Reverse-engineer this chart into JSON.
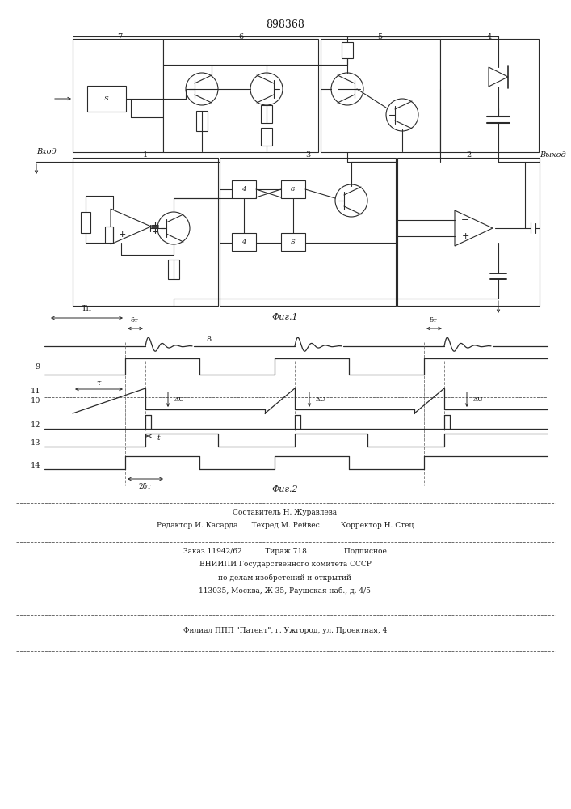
{
  "title": "898368",
  "fig1_label": "Фиг.1",
  "fig2_label": "Фиг.2",
  "vhod_label": "Вход",
  "vyhod_label": "Выход",
  "footer_lines": [
    "Составитель Н. Журавлева",
    "Редактор И. Касарда      Техред М. Рейвес         Корректор Н. Стец",
    "Заказ 11942/62          Тираж 718                Подписное",
    "ВНИИПИ Государственного комитета СССР",
    "по делам изобретений и открытий",
    "113035, Москва, Ж-35, Раушская наб., д. 4/5",
    "Филиал ППП \"Патент\", г. Ужгород, ул. Проектная, 4"
  ],
  "line_color": "#2a2a2a",
  "text_color": "#1a1a1a"
}
